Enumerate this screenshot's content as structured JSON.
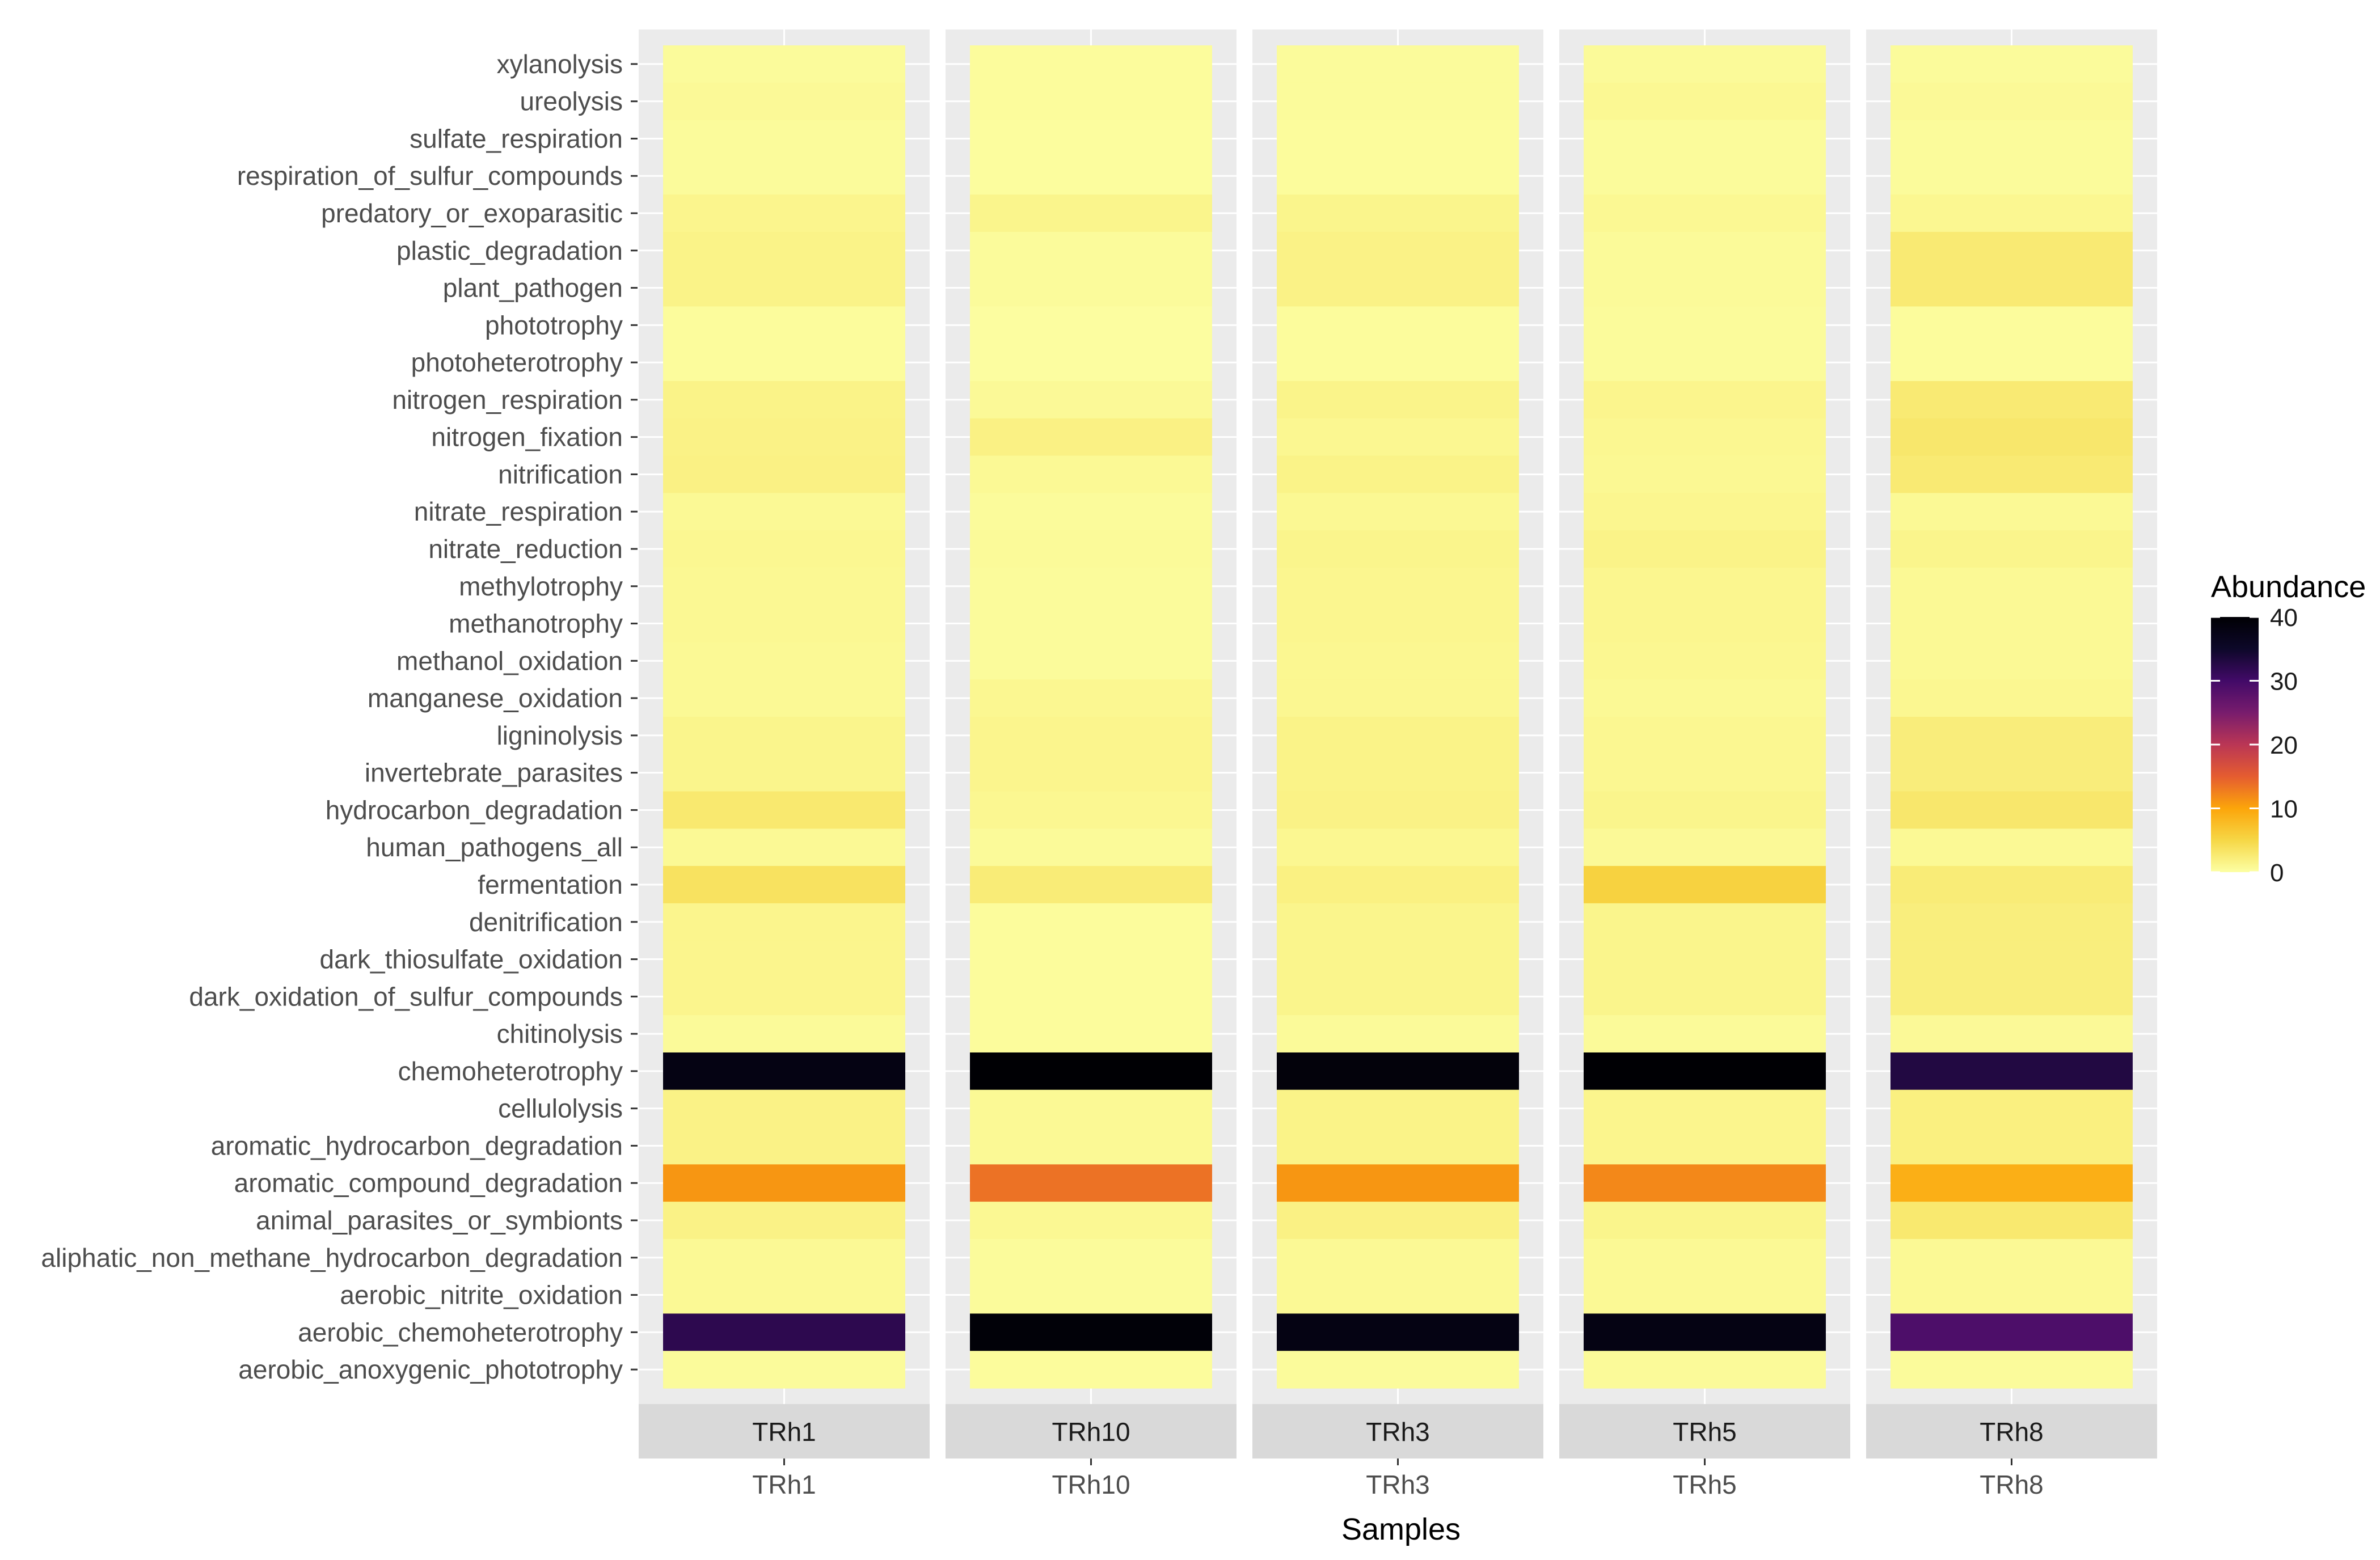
{
  "chart_data": {
    "type": "heatmap",
    "xlabel": "Samples",
    "legend_title": "Abundance",
    "colorbar_ticks": [
      "0",
      "10",
      "20",
      "30",
      "40"
    ],
    "color_range": [
      0,
      40
    ],
    "colormap": "inferno",
    "colormap_stops": [
      "#fcffa4",
      "#f6d746",
      "#fca50a",
      "#e55c30",
      "#ba3655",
      "#781c6d",
      "#420a68",
      "#0d0829",
      "#000004"
    ],
    "facet_panel_color": "#ebebeb",
    "facet_strip_color": "#d9d9d9",
    "samples": [
      "TRh1",
      "TRh10",
      "TRh3",
      "TRh5",
      "TRh8"
    ],
    "functions": [
      "xylanolysis",
      "ureolysis",
      "sulfate_respiration",
      "respiration_of_sulfur_compounds",
      "predatory_or_exoparasitic",
      "plastic_degradation",
      "plant_pathogen",
      "phototrophy",
      "photoheterotrophy",
      "nitrogen_respiration",
      "nitrogen_fixation",
      "nitrification",
      "nitrate_respiration",
      "nitrate_reduction",
      "methylotrophy",
      "methanotrophy",
      "methanol_oxidation",
      "manganese_oxidation",
      "ligninolysis",
      "invertebrate_parasites",
      "hydrocarbon_degradation",
      "human_pathogens_all",
      "fermentation",
      "denitrification",
      "dark_thiosulfate_oxidation",
      "dark_oxidation_of_sulfur_compounds",
      "chitinolysis",
      "chemoheterotrophy",
      "cellulolysis",
      "aromatic_hydrocarbon_degradation",
      "aromatic_compound_degradation",
      "animal_parasites_or_symbionts",
      "aliphatic_non_methane_hydrocarbon_degradation",
      "aerobic_nitrite_oxidation",
      "aerobic_chemoheterotrophy",
      "aerobic_anoxygenic_phototrophy"
    ],
    "values": [
      [
        0.5,
        0.4,
        0.5,
        0.6,
        0.5
      ],
      [
        0.7,
        0.4,
        0.5,
        0.9,
        0.7
      ],
      [
        0.5,
        0.3,
        0.4,
        0.5,
        0.5
      ],
      [
        0.5,
        0.3,
        0.4,
        0.5,
        0.5
      ],
      [
        1.2,
        1.3,
        1.3,
        0.9,
        1.0
      ],
      [
        1.5,
        0.5,
        1.6,
        0.6,
        2.6
      ],
      [
        1.5,
        0.5,
        1.6,
        0.6,
        2.6
      ],
      [
        0.4,
        0.2,
        0.4,
        0.5,
        0.4
      ],
      [
        0.4,
        0.2,
        0.4,
        0.5,
        0.4
      ],
      [
        1.5,
        0.7,
        1.4,
        1.2,
        2.6
      ],
      [
        1.6,
        1.7,
        1.0,
        1.0,
        3.0
      ],
      [
        1.7,
        0.8,
        1.5,
        0.9,
        2.6
      ],
      [
        0.8,
        0.5,
        0.9,
        1.1,
        0.8
      ],
      [
        1.0,
        0.6,
        1.3,
        1.5,
        1.3
      ],
      [
        0.9,
        0.5,
        1.1,
        1.1,
        0.8
      ],
      [
        0.9,
        0.5,
        1.1,
        1.1,
        0.8
      ],
      [
        0.8,
        0.5,
        1.0,
        1.0,
        0.8
      ],
      [
        0.8,
        1.0,
        1.0,
        0.8,
        1.0
      ],
      [
        1.3,
        1.2,
        1.5,
        1.0,
        2.2
      ],
      [
        1.3,
        1.2,
        1.5,
        1.0,
        2.2
      ],
      [
        2.8,
        1.0,
        1.6,
        1.3,
        3.0
      ],
      [
        0.8,
        0.6,
        1.0,
        0.7,
        0.8
      ],
      [
        3.6,
        2.4,
        1.8,
        5.5,
        2.4
      ],
      [
        1.2,
        0.4,
        1.3,
        1.3,
        2.1
      ],
      [
        1.2,
        0.4,
        1.3,
        1.3,
        2.1
      ],
      [
        1.2,
        0.4,
        1.3,
        1.3,
        2.1
      ],
      [
        0.6,
        0.4,
        0.6,
        0.6,
        0.7
      ],
      [
        38.0,
        40.0,
        39.0,
        40.0,
        33.0
      ],
      [
        1.6,
        0.8,
        1.5,
        1.2,
        1.9
      ],
      [
        1.6,
        0.8,
        1.5,
        1.2,
        1.9
      ],
      [
        11.0,
        13.5,
        11.0,
        12.0,
        9.0
      ],
      [
        1.6,
        0.9,
        1.7,
        1.3,
        2.8
      ],
      [
        0.8,
        0.5,
        0.8,
        0.8,
        0.8
      ],
      [
        0.8,
        0.5,
        0.8,
        0.8,
        0.8
      ],
      [
        32.0,
        39.5,
        38.0,
        38.0,
        29.0
      ],
      [
        0.5,
        0.4,
        0.5,
        0.6,
        0.5
      ]
    ]
  }
}
